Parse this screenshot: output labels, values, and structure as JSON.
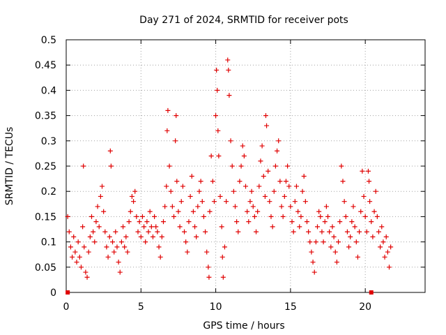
{
  "chart_data": {
    "type": "scatter",
    "title": "Day 271 of 2024, SRMTID for receiver pots",
    "xlabel": "GPS time / hours",
    "ylabel": "SRMTID / TECUs",
    "xlim": [
      0,
      24
    ],
    "ylim": [
      0,
      0.5
    ],
    "x_ticks": [
      0,
      5,
      10,
      15,
      20
    ],
    "x_tick_labels": [
      "0",
      "5",
      "10",
      "15",
      "20"
    ],
    "y_ticks": [
      0,
      0.05,
      0.1,
      0.15,
      0.2,
      0.25,
      0.3,
      0.35,
      0.4,
      0.45,
      0.5
    ],
    "y_tick_labels": [
      "0",
      "0.05",
      "0.1",
      "0.15",
      "0.2",
      "0.25",
      "0.3",
      "0.35",
      "0.4",
      "0.45",
      "0.5"
    ],
    "grid": true,
    "marker": "plus",
    "color": "#e00000",
    "series": [
      {
        "name": "SRMTID",
        "points": [
          [
            0.1,
            0.15
          ],
          [
            0.2,
            0.12
          ],
          [
            0.3,
            0.09
          ],
          [
            0.4,
            0.07
          ],
          [
            0.5,
            0.11
          ],
          [
            0.6,
            0.08
          ],
          [
            0.7,
            0.06
          ],
          [
            0.8,
            0.1
          ],
          [
            0.9,
            0.07
          ],
          [
            1.0,
            0.05
          ],
          [
            1.1,
            0.13
          ],
          [
            1.15,
            0.25
          ],
          [
            1.2,
            0.09
          ],
          [
            1.3,
            0.04
          ],
          [
            1.4,
            0.03
          ],
          [
            1.5,
            0.08
          ],
          [
            1.6,
            0.11
          ],
          [
            1.7,
            0.15
          ],
          [
            1.8,
            0.12
          ],
          [
            1.9,
            0.1
          ],
          [
            2.0,
            0.14
          ],
          [
            2.1,
            0.17
          ],
          [
            2.2,
            0.13
          ],
          [
            2.3,
            0.19
          ],
          [
            2.4,
            0.21
          ],
          [
            2.5,
            0.16
          ],
          [
            2.6,
            0.12
          ],
          [
            2.7,
            0.09
          ],
          [
            2.8,
            0.07
          ],
          [
            2.9,
            0.11
          ],
          [
            2.95,
            0.28
          ],
          [
            3.0,
            0.25
          ],
          [
            3.1,
            0.1
          ],
          [
            3.2,
            0.08
          ],
          [
            3.3,
            0.12
          ],
          [
            3.4,
            0.09
          ],
          [
            3.5,
            0.06
          ],
          [
            3.6,
            0.04
          ],
          [
            3.7,
            0.1
          ],
          [
            3.8,
            0.13
          ],
          [
            3.9,
            0.09
          ],
          [
            4.0,
            0.11
          ],
          [
            4.1,
            0.08
          ],
          [
            4.2,
            0.14
          ],
          [
            4.3,
            0.16
          ],
          [
            4.4,
            0.19
          ],
          [
            4.5,
            0.18
          ],
          [
            4.6,
            0.2
          ],
          [
            4.7,
            0.15
          ],
          [
            4.8,
            0.12
          ],
          [
            4.9,
            0.14
          ],
          [
            5.0,
            0.11
          ],
          [
            5.1,
            0.15
          ],
          [
            5.2,
            0.13
          ],
          [
            5.3,
            0.1
          ],
          [
            5.4,
            0.14
          ],
          [
            5.5,
            0.12
          ],
          [
            5.6,
            0.16
          ],
          [
            5.7,
            0.13
          ],
          [
            5.8,
            0.11
          ],
          [
            5.9,
            0.15
          ],
          [
            6.0,
            0.13
          ],
          [
            6.1,
            0.12
          ],
          [
            6.2,
            0.09
          ],
          [
            6.3,
            0.07
          ],
          [
            6.4,
            0.11
          ],
          [
            6.5,
            0.14
          ],
          [
            6.6,
            0.17
          ],
          [
            6.7,
            0.21
          ],
          [
            6.75,
            0.32
          ],
          [
            6.8,
            0.36
          ],
          [
            6.9,
            0.25
          ],
          [
            7.0,
            0.2
          ],
          [
            7.1,
            0.17
          ],
          [
            7.2,
            0.15
          ],
          [
            7.3,
            0.3
          ],
          [
            7.35,
            0.35
          ],
          [
            7.4,
            0.22
          ],
          [
            7.5,
            0.16
          ],
          [
            7.6,
            0.13
          ],
          [
            7.7,
            0.18
          ],
          [
            7.8,
            0.21
          ],
          [
            7.9,
            0.12
          ],
          [
            8.0,
            0.1
          ],
          [
            8.1,
            0.08
          ],
          [
            8.2,
            0.14
          ],
          [
            8.3,
            0.19
          ],
          [
            8.4,
            0.23
          ],
          [
            8.5,
            0.16
          ],
          [
            8.6,
            0.13
          ],
          [
            8.7,
            0.11
          ],
          [
            8.8,
            0.17
          ],
          [
            8.9,
            0.2
          ],
          [
            9.0,
            0.22
          ],
          [
            9.1,
            0.18
          ],
          [
            9.2,
            0.15
          ],
          [
            9.3,
            0.12
          ],
          [
            9.4,
            0.08
          ],
          [
            9.5,
            0.05
          ],
          [
            9.55,
            0.03
          ],
          [
            9.6,
            0.16
          ],
          [
            9.7,
            0.27
          ],
          [
            9.8,
            0.22
          ],
          [
            9.9,
            0.18
          ],
          [
            10.0,
            0.35
          ],
          [
            10.05,
            0.44
          ],
          [
            10.1,
            0.4
          ],
          [
            10.15,
            0.32
          ],
          [
            10.2,
            0.27
          ],
          [
            10.3,
            0.19
          ],
          [
            10.4,
            0.13
          ],
          [
            10.45,
            0.07
          ],
          [
            10.5,
            0.03
          ],
          [
            10.6,
            0.09
          ],
          [
            10.7,
            0.18
          ],
          [
            10.8,
            0.46
          ],
          [
            10.85,
            0.44
          ],
          [
            10.9,
            0.39
          ],
          [
            11.0,
            0.3
          ],
          [
            11.1,
            0.25
          ],
          [
            11.2,
            0.2
          ],
          [
            11.3,
            0.17
          ],
          [
            11.4,
            0.14
          ],
          [
            11.5,
            0.12
          ],
          [
            11.6,
            0.22
          ],
          [
            11.7,
            0.25
          ],
          [
            11.8,
            0.29
          ],
          [
            11.9,
            0.27
          ],
          [
            12.0,
            0.21
          ],
          [
            12.1,
            0.16
          ],
          [
            12.2,
            0.14
          ],
          [
            12.3,
            0.18
          ],
          [
            12.4,
            0.2
          ],
          [
            12.5,
            0.17
          ],
          [
            12.6,
            0.15
          ],
          [
            12.7,
            0.12
          ],
          [
            12.8,
            0.16
          ],
          [
            12.9,
            0.21
          ],
          [
            13.0,
            0.26
          ],
          [
            13.1,
            0.29
          ],
          [
            13.2,
            0.23
          ],
          [
            13.3,
            0.19
          ],
          [
            13.35,
            0.35
          ],
          [
            13.4,
            0.33
          ],
          [
            13.5,
            0.24
          ],
          [
            13.6,
            0.18
          ],
          [
            13.7,
            0.15
          ],
          [
            13.8,
            0.13
          ],
          [
            13.9,
            0.2
          ],
          [
            14.0,
            0.25
          ],
          [
            14.1,
            0.28
          ],
          [
            14.2,
            0.3
          ],
          [
            14.3,
            0.22
          ],
          [
            14.4,
            0.17
          ],
          [
            14.5,
            0.15
          ],
          [
            14.6,
            0.19
          ],
          [
            14.7,
            0.22
          ],
          [
            14.8,
            0.25
          ],
          [
            14.9,
            0.21
          ],
          [
            15.0,
            0.17
          ],
          [
            15.1,
            0.14
          ],
          [
            15.2,
            0.12
          ],
          [
            15.3,
            0.18
          ],
          [
            15.4,
            0.21
          ],
          [
            15.5,
            0.16
          ],
          [
            15.6,
            0.13
          ],
          [
            15.7,
            0.15
          ],
          [
            15.8,
            0.2
          ],
          [
            15.9,
            0.23
          ],
          [
            16.0,
            0.18
          ],
          [
            16.1,
            0.14
          ],
          [
            16.2,
            0.12
          ],
          [
            16.3,
            0.1
          ],
          [
            16.4,
            0.08
          ],
          [
            16.5,
            0.06
          ],
          [
            16.6,
            0.04
          ],
          [
            16.7,
            0.1
          ],
          [
            16.8,
            0.13
          ],
          [
            16.9,
            0.16
          ],
          [
            17.0,
            0.15
          ],
          [
            17.1,
            0.12
          ],
          [
            17.2,
            0.1
          ],
          [
            17.3,
            0.14
          ],
          [
            17.4,
            0.17
          ],
          [
            17.5,
            0.15
          ],
          [
            17.6,
            0.12
          ],
          [
            17.7,
            0.09
          ],
          [
            17.8,
            0.13
          ],
          [
            17.9,
            0.11
          ],
          [
            18.0,
            0.08
          ],
          [
            18.1,
            0.06
          ],
          [
            18.2,
            0.1
          ],
          [
            18.3,
            0.14
          ],
          [
            18.4,
            0.25
          ],
          [
            18.5,
            0.22
          ],
          [
            18.6,
            0.18
          ],
          [
            18.7,
            0.15
          ],
          [
            18.8,
            0.12
          ],
          [
            18.9,
            0.09
          ],
          [
            19.0,
            0.11
          ],
          [
            19.1,
            0.14
          ],
          [
            19.2,
            0.17
          ],
          [
            19.3,
            0.13
          ],
          [
            19.4,
            0.1
          ],
          [
            19.5,
            0.07
          ],
          [
            19.6,
            0.12
          ],
          [
            19.7,
            0.16
          ],
          [
            19.8,
            0.24
          ],
          [
            19.9,
            0.19
          ],
          [
            20.0,
            0.15
          ],
          [
            20.1,
            0.12
          ],
          [
            20.2,
            0.24
          ],
          [
            20.25,
            0.22
          ],
          [
            20.3,
            0.18
          ],
          [
            20.4,
            0.14
          ],
          [
            20.5,
            0.11
          ],
          [
            20.6,
            0.16
          ],
          [
            20.7,
            0.2
          ],
          [
            20.8,
            0.15
          ],
          [
            20.9,
            0.12
          ],
          [
            21.0,
            0.09
          ],
          [
            21.1,
            0.13
          ],
          [
            21.2,
            0.1
          ],
          [
            21.3,
            0.07
          ],
          [
            21.4,
            0.11
          ],
          [
            21.5,
            0.08
          ],
          [
            21.6,
            0.05
          ],
          [
            21.7,
            0.09
          ]
        ]
      }
    ],
    "zero_markers": [
      [
        0.1,
        0
      ],
      [
        20.4,
        0
      ]
    ]
  }
}
